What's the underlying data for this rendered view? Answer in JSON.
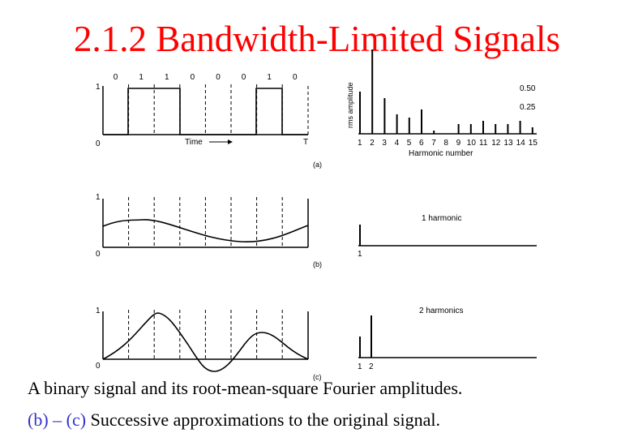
{
  "slide": {
    "title": "2.1.2 Bandwidth-Limited Signals",
    "caption_line1": "A binary signal and its root-mean-square Fourier amplitudes.",
    "caption_line2_prefix": "(b) – (c)",
    "caption_line2_rest": " Successive approximations to the original signal.",
    "colors": {
      "title": "#ff0000",
      "caption_highlight": "#3333cc"
    }
  },
  "panel_a": {
    "bits": [
      "0",
      "1",
      "1",
      "0",
      "0",
      "0",
      "1",
      "0"
    ],
    "y_top_label": "1",
    "y_bottom_label": "0",
    "time_label": "Time",
    "t_label": "T",
    "panel_label": "(a)",
    "ylabel": "rms amplitude",
    "xlabel": "Harmonic number",
    "amp_tick_050": "0.50",
    "amp_tick_025": "0.25",
    "harmonic_ticks": [
      "1",
      "2",
      "3",
      "4",
      "5",
      "6",
      "7",
      "8",
      "9",
      "10",
      "11",
      "12",
      "13",
      "14",
      "15"
    ]
  },
  "panel_b": {
    "y_top_label": "1",
    "y_bottom_label": "0",
    "panel_label": "(b)",
    "spectrum_label": "1 harmonic",
    "harmonic_ticks": [
      "1"
    ]
  },
  "panel_c": {
    "y_top_label": "1",
    "y_bottom_label": "0",
    "panel_label": "(c)",
    "spectrum_label": "2 harmonics",
    "harmonic_ticks": [
      "1",
      "2"
    ]
  },
  "chart_data": {
    "type": "bar",
    "categories": [
      "1",
      "2",
      "3",
      "4",
      "5",
      "6",
      "7",
      "8",
      "9",
      "10",
      "11",
      "12",
      "13",
      "14",
      "15"
    ],
    "values": [
      0.26,
      0.52,
      0.22,
      0.12,
      0.1,
      0.15,
      0.02,
      0.0,
      0.06,
      0.06,
      0.08,
      0.06,
      0.06,
      0.08,
      0.04
    ],
    "xlabel": "Harmonic number",
    "ylabel": "rms amplitude",
    "ylim": [
      0,
      0.55
    ]
  }
}
